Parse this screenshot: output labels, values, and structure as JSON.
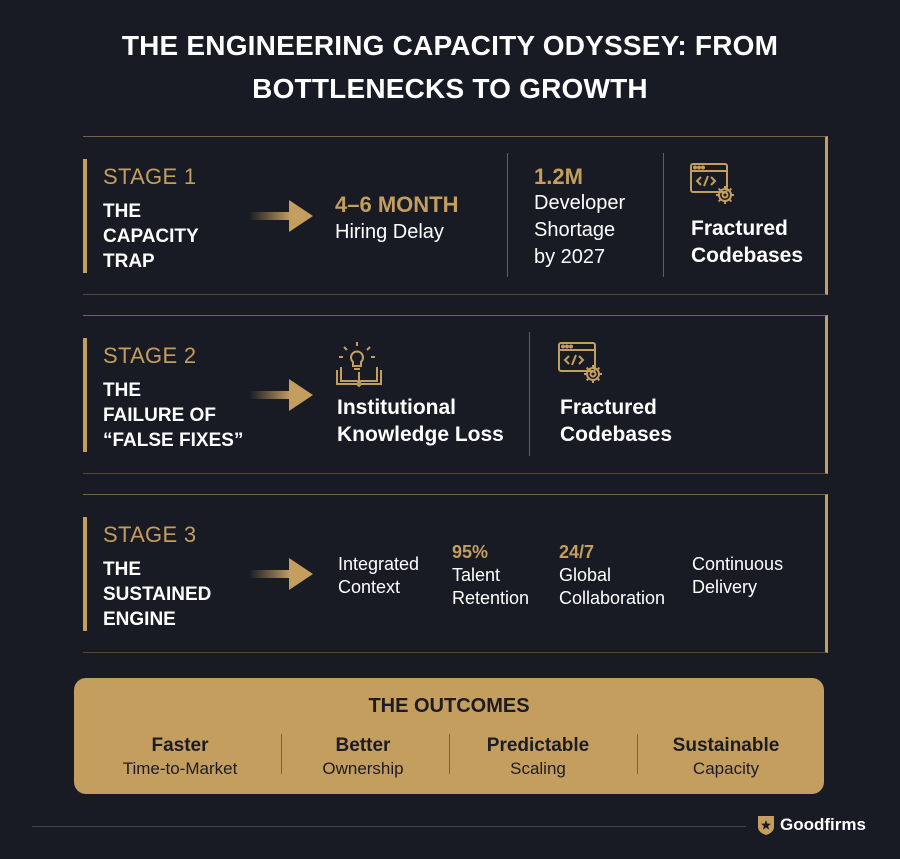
{
  "title": {
    "line1": "THE ENGINEERING CAPACITY ODYSSEY: FROM",
    "line2": "BOTTLENECKS TO GROWTH"
  },
  "stage1": {
    "num": "STAGE 1",
    "name": [
      "THE",
      "CAPACITY",
      "TRAP"
    ],
    "hiring": {
      "value": "4–6 MONTH",
      "label": "Hiring Delay"
    },
    "shortage": {
      "value": "1.2M",
      "label": [
        "Developer",
        "Shortage",
        "by 2027"
      ]
    },
    "codebases": {
      "icon": "code-gear-icon",
      "label": [
        "Fractured",
        "Codebases"
      ]
    }
  },
  "stage2": {
    "num": "STAGE 2",
    "name": [
      "THE",
      "FAILURE OF",
      "“FALSE FIXES”"
    ],
    "knowledge": {
      "icon": "lightbulb-book-icon",
      "label": [
        "Institutional",
        "Knowledge Loss"
      ]
    },
    "codebases": {
      "icon": "code-gear-icon",
      "label": [
        "Fractured",
        "Codebases"
      ]
    }
  },
  "stage3": {
    "num": "STAGE 3",
    "name": [
      "THE",
      "SUSTAINED",
      "ENGINE"
    ],
    "context": {
      "label": [
        "Integrated",
        "Context"
      ]
    },
    "retention": {
      "value": "95%",
      "label": [
        "Talent",
        "Retention"
      ]
    },
    "collab": {
      "value": "24/7",
      "label": [
        "Global",
        "Collaboration"
      ]
    },
    "delivery": {
      "label": [
        "Continuous",
        "Delivery"
      ]
    }
  },
  "outcomes": {
    "title": "THE OUTCOMES",
    "items": [
      {
        "t1": "Faster",
        "t2": "Time-to-Market"
      },
      {
        "t1": "Better",
        "t2": "Ownership"
      },
      {
        "t1": "Predictable",
        "t2": "Scaling"
      },
      {
        "t1": "Sustainable",
        "t2": "Capacity"
      }
    ]
  },
  "brand": {
    "name": "Goodfirms",
    "icon": "star-shield-icon"
  },
  "colors": {
    "background": "#181a24",
    "gold": "#c49e5f",
    "text": "#ffffff"
  }
}
